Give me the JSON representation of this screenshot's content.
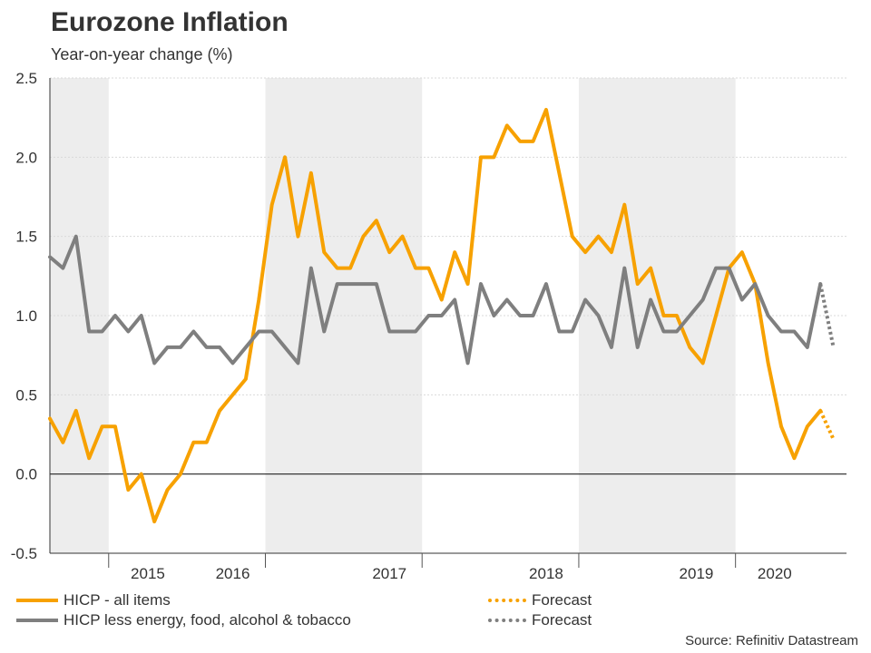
{
  "header": {
    "title": "Eurozone Inflation",
    "subtitle": "Year-on-year change (%)"
  },
  "legend": {
    "hicp_label": "HICP - all items",
    "core_label": "HICP less energy, food, alcohol & tobacco",
    "hicp_forecast_label": "Forecast",
    "core_forecast_label": "Forecast"
  },
  "source": "Source: Refinitiv Datastream",
  "colors": {
    "hicp": "#F7A100",
    "core": "#7F7F7F",
    "shade": "#EDEDED",
    "grid": "#D9D9D9",
    "zero": "#222222"
  },
  "chart_data": {
    "type": "line",
    "title": "Eurozone Inflation",
    "subtitle": "Year-on-year change (%)",
    "xlabel": "",
    "ylabel": "Year-on-year change (%)",
    "ylim": [
      -0.5,
      2.5
    ],
    "yticks": [
      "-0.5",
      "0.0",
      "0.5",
      "1.0",
      "1.5",
      "2.0",
      "2.5"
    ],
    "ytick_values": [
      -0.5,
      0.0,
      0.5,
      1.0,
      1.5,
      2.0,
      2.5
    ],
    "x_start": "2014-11",
    "x_months_total": 62,
    "year_labels": [
      {
        "label": "2015",
        "start_index": 2,
        "end_index": 13
      },
      {
        "label": "2016",
        "start_index": 2,
        "end_index": 26
      },
      {
        "label": "2017",
        "start_index": 14,
        "end_index": 38
      },
      {
        "label": "2018",
        "start_index": 26,
        "end_index": 50
      },
      {
        "label": "2019",
        "start_index": 38,
        "end_index": 62
      },
      {
        "label": "2020",
        "start_index": 50,
        "end_index": 61
      }
    ],
    "year_boundaries": [
      4.5,
      16.5,
      28.5,
      40.5,
      52.5
    ],
    "shaded_year_spans": [
      [
        0,
        4.5
      ],
      [
        16.5,
        28.5
      ],
      [
        40.5,
        52.5
      ]
    ],
    "series": [
      {
        "name": "HICP - all items",
        "style": "solid",
        "color_key": "hicp",
        "x_start_index": 0,
        "values": [
          0.35,
          0.2,
          0.4,
          0.1,
          0.3,
          0.3,
          -0.1,
          0.0,
          -0.3,
          -0.1,
          0.0,
          0.2,
          0.2,
          0.4,
          0.5,
          0.6,
          1.1,
          1.7,
          2.0,
          1.5,
          1.9,
          1.4,
          1.3,
          1.3,
          1.5,
          1.6,
          1.4,
          1.5,
          1.3,
          1.3,
          1.1,
          1.4,
          1.2,
          2.0,
          2.0,
          2.2,
          2.1,
          2.1,
          2.3,
          1.9,
          1.5,
          1.4,
          1.5,
          1.4,
          1.7,
          1.2,
          1.3,
          1.0,
          1.0,
          0.8,
          0.7,
          1.0,
          1.3,
          1.4,
          1.2,
          0.7,
          0.3,
          0.1,
          0.3,
          0.4
        ]
      },
      {
        "name": "HICP less energy, food, alcohol & tobacco",
        "style": "solid",
        "color_key": "core",
        "x_start_index": 0,
        "values": [
          1.37,
          1.3,
          1.5,
          0.9,
          0.9,
          1.0,
          0.9,
          1.0,
          0.7,
          0.8,
          0.8,
          0.9,
          0.8,
          0.8,
          0.7,
          0.8,
          0.9,
          0.9,
          0.8,
          0.7,
          1.3,
          0.9,
          1.2,
          1.2,
          1.2,
          1.2,
          0.9,
          0.9,
          0.9,
          1.0,
          1.0,
          1.1,
          0.7,
          1.2,
          1.0,
          1.1,
          1.0,
          1.0,
          1.2,
          0.9,
          0.9,
          1.1,
          1.0,
          0.8,
          1.3,
          0.8,
          1.1,
          0.9,
          0.9,
          1.0,
          1.1,
          1.3,
          1.3,
          1.1,
          1.2,
          1.0,
          0.9,
          0.9,
          0.8,
          1.2
        ]
      },
      {
        "name": "Forecast",
        "style": "dotted",
        "color_key": "hicp",
        "x_start_index": 59,
        "values": [
          0.4,
          0.22
        ]
      },
      {
        "name": "Forecast",
        "style": "dotted",
        "color_key": "core",
        "x_start_index": 59,
        "values": [
          1.2,
          0.8
        ]
      }
    ],
    "legend_position": "bottom"
  }
}
